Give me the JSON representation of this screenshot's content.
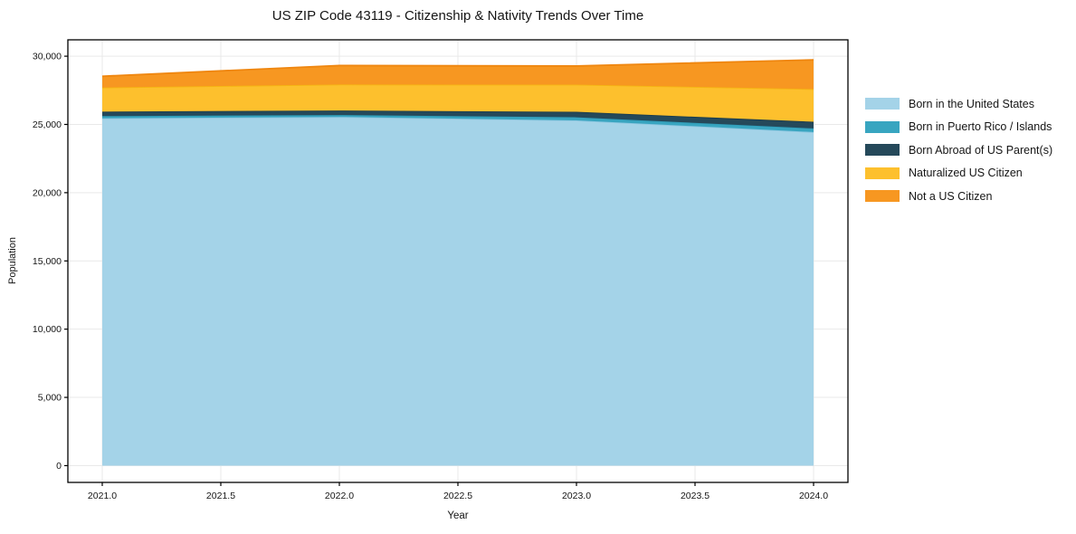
{
  "chart_data": {
    "type": "area",
    "stacked": true,
    "title": "US ZIP Code 43119 - Citizenship & Nativity Trends Over Time",
    "xlabel": "Year",
    "ylabel": "Population",
    "x": [
      2021,
      2022,
      2023,
      2024
    ],
    "xlim": [
      2020.855,
      2024.145
    ],
    "ylim": [
      -1230,
      31200
    ],
    "grid": true,
    "legend_position": "outside-center-right",
    "xticks": {
      "values": [
        2021.0,
        2021.5,
        2022.0,
        2022.5,
        2023.0,
        2023.5,
        2024.0
      ],
      "labels": [
        "2021.0",
        "2021.5",
        "2022.0",
        "2022.5",
        "2023.0",
        "2023.5",
        "2024.0"
      ]
    },
    "yticks": {
      "values": [
        0,
        5000,
        10000,
        15000,
        20000,
        25000,
        30000
      ],
      "labels": [
        "0",
        "5,000",
        "10,000",
        "15,000",
        "20,000",
        "25,000",
        "30,000"
      ]
    },
    "series": [
      {
        "name": "Born in the United States",
        "color": "#a4d3e8",
        "line_color": "#8cc6e0",
        "values": [
          25450,
          25550,
          25300,
          24440
        ]
      },
      {
        "name": "Born in Puerto Rico / Islands",
        "color": "#38a5c0",
        "line_color": "#2f9cb8",
        "values": [
          160,
          140,
          225,
          265
        ]
      },
      {
        "name": "Born Abroad of US Parent(s)",
        "color": "#25495a",
        "line_color": "#1b3d4d",
        "values": [
          330,
          330,
          400,
          490
        ]
      },
      {
        "name": "Naturalized US Citizen",
        "color": "#fdc02d",
        "line_color": "#f5b512",
        "values": [
          1765,
          1905,
          1990,
          2395
        ]
      },
      {
        "name": "Not a US Citizen",
        "color": "#f79721",
        "line_color": "#ef860f",
        "values": [
          825,
          1395,
          1370,
          2140
        ]
      }
    ],
    "totals": [
      28520,
      29320,
      29290,
      29730
    ]
  },
  "colors": {
    "background": "#ffffff",
    "grid": "#e9e9e9",
    "axis": "#000000",
    "text": "#151515"
  }
}
